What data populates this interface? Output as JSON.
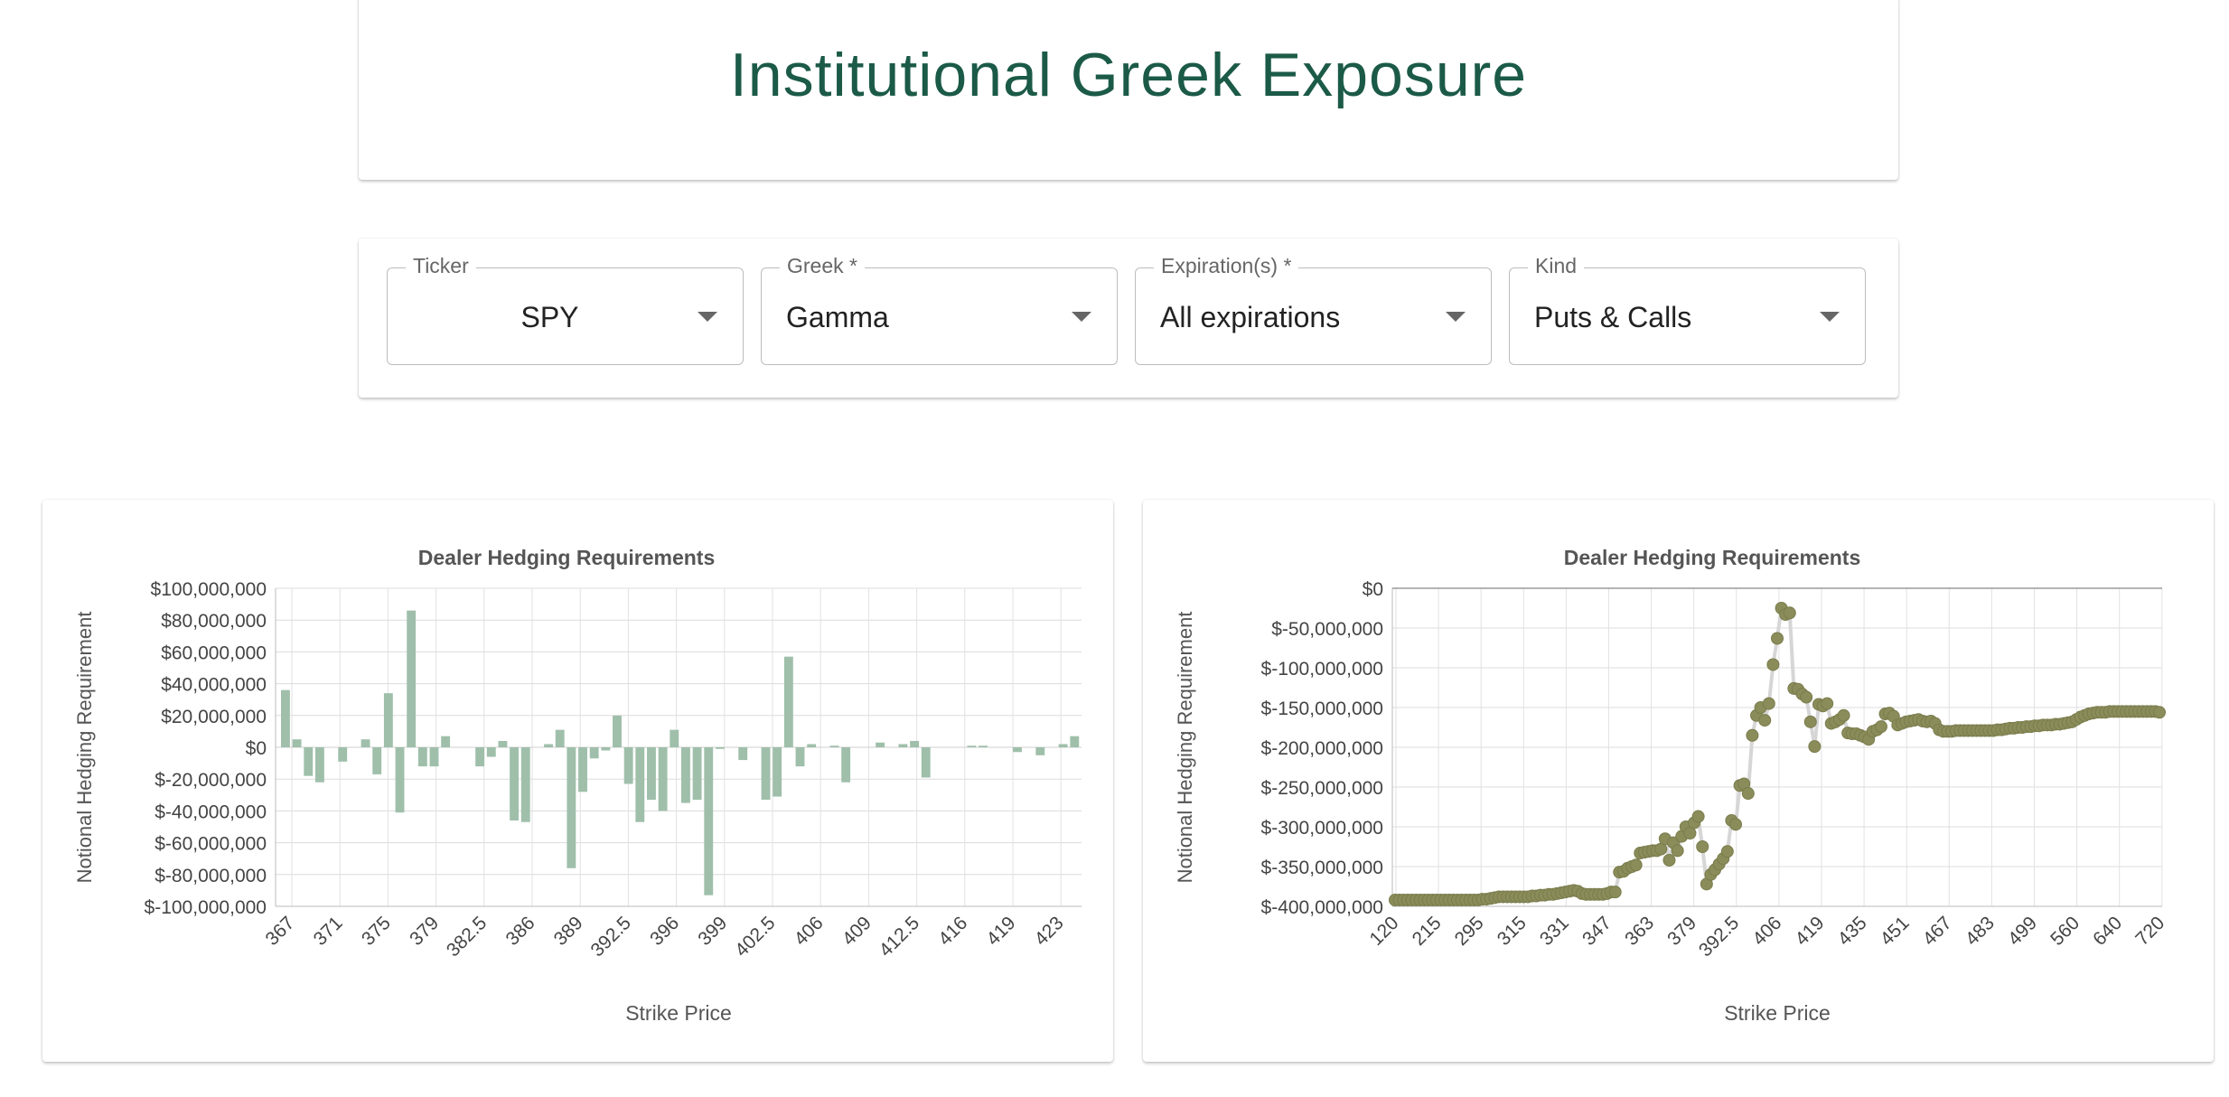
{
  "header": {
    "title": "Institutional Greek Exposure"
  },
  "controls": {
    "fields": [
      {
        "label": "Ticker",
        "value": "SPY"
      },
      {
        "label": "Greek *",
        "value": "Gamma"
      },
      {
        "label": "Expiration(s) *",
        "value": "All expirations"
      },
      {
        "label": "Kind",
        "value": "Puts & Calls"
      }
    ]
  },
  "colors": {
    "title": "#1b5a47",
    "bar": "#9fbfaa",
    "dot": "#8a8c5a",
    "dot_line": "#d6d6d6"
  },
  "chart_data": [
    {
      "type": "bar",
      "title": "Dealer Hedging Requirements",
      "xlabel": "Strike Price",
      "ylabel": "Notional Hedging Requirement",
      "ylim": [
        -100000000,
        100000000
      ],
      "yticks": [
        100000000,
        80000000,
        60000000,
        40000000,
        20000000,
        0,
        -20000000,
        -40000000,
        -60000000,
        -80000000,
        -100000000
      ],
      "ytick_labels": [
        "$100,000,000",
        "$80,000,000",
        "$60,000,000",
        "$40,000,000",
        "$20,000,000",
        "$0",
        "$-20,000,000",
        "$-40,000,000",
        "$-60,000,000",
        "$-80,000,000",
        "$-100,000,000"
      ],
      "xtick_labels": [
        "367",
        "371",
        "375",
        "379",
        "382.5",
        "386",
        "389",
        "392.5",
        "396",
        "399",
        "402.5",
        "406",
        "409",
        "412.5",
        "416",
        "419",
        "423"
      ],
      "grid": true,
      "values": [
        36000000,
        5000000,
        -18000000,
        -22000000,
        0,
        -9000000,
        0,
        5000000,
        -17000000,
        34000000,
        -41000000,
        86000000,
        -12000000,
        -12000000,
        7000000,
        0,
        0,
        -12000000,
        -6000000,
        4000000,
        -46000000,
        -47000000,
        0,
        2000000,
        11000000,
        -76000000,
        -28000000,
        -7000000,
        -2000000,
        20000000,
        -23000000,
        -47000000,
        -33000000,
        -40000000,
        11000000,
        -35000000,
        -33000000,
        -93000000,
        -1000000,
        0,
        -8000000,
        0,
        -33000000,
        -31000000,
        57000000,
        -12000000,
        2000000,
        0,
        1000000,
        -22000000,
        0,
        0,
        3000000,
        0,
        2000000,
        4000000,
        -19000000,
        0,
        0,
        0,
        1000000,
        1000000,
        0,
        0,
        -3000000,
        0,
        -5000000,
        0,
        2000000,
        7000000
      ]
    },
    {
      "type": "scatter",
      "title": "Dealer Hedging Requirements",
      "xlabel": "Strike Price",
      "ylabel": "Notional Hedging Requirement",
      "ylim": [
        -400000000,
        0
      ],
      "yticks": [
        0,
        -50000000,
        -100000000,
        -150000000,
        -200000000,
        -250000000,
        -300000000,
        -350000000,
        -400000000
      ],
      "ytick_labels": [
        "$0",
        "$-50,000,000",
        "$-100,000,000",
        "$-150,000,000",
        "$-200,000,000",
        "$-250,000,000",
        "$-300,000,000",
        "$-350,000,000",
        "$-400,000,000"
      ],
      "xtick_labels": [
        "120",
        "215",
        "295",
        "315",
        "331",
        "347",
        "363",
        "379",
        "392.5",
        "406",
        "419",
        "435",
        "451",
        "467",
        "483",
        "499",
        "560",
        "640",
        "720"
      ],
      "grid": true,
      "values": [
        -392000000,
        -392000000,
        -392000000,
        -392000000,
        -392000000,
        -392000000,
        -392000000,
        -392000000,
        -392000000,
        -392000000,
        -392000000,
        -392000000,
        -392000000,
        -392000000,
        -392000000,
        -392000000,
        -392000000,
        -392000000,
        -392000000,
        -392000000,
        -392000000,
        -391000000,
        -391000000,
        -390000000,
        -389000000,
        -388000000,
        -388000000,
        -388000000,
        -388000000,
        -388000000,
        -388000000,
        -388000000,
        -388000000,
        -387000000,
        -387000000,
        -386000000,
        -386000000,
        -385000000,
        -385000000,
        -384000000,
        -383000000,
        -382000000,
        -381000000,
        -380000000,
        -381000000,
        -384000000,
        -385000000,
        -385000000,
        -385000000,
        -385000000,
        -385000000,
        -384000000,
        -382000000,
        -382000000,
        -357000000,
        -356000000,
        -352000000,
        -350000000,
        -348000000,
        -333000000,
        -332000000,
        -331000000,
        -330000000,
        -330000000,
        -328000000,
        -315000000,
        -342000000,
        -320000000,
        -330000000,
        -312000000,
        -300000000,
        -308000000,
        -295000000,
        -287000000,
        -325000000,
        -372000000,
        -360000000,
        -354000000,
        -347000000,
        -340000000,
        -331000000,
        -292000000,
        -297000000,
        -248000000,
        -246000000,
        -258000000,
        -185000000,
        -160000000,
        -150000000,
        -166000000,
        -145000000,
        -96000000,
        -63000000,
        -25000000,
        -33000000,
        -31000000,
        -126000000,
        -127000000,
        -133000000,
        -137000000,
        -168000000,
        -199000000,
        -146000000,
        -148000000,
        -145000000,
        -170000000,
        -168000000,
        -165000000,
        -160000000,
        -182000000,
        -183000000,
        -183000000,
        -185000000,
        -187000000,
        -190000000,
        -180000000,
        -178000000,
        -174000000,
        -158000000,
        -157000000,
        -161000000,
        -172000000,
        -170000000,
        -168000000,
        -167000000,
        -166000000,
        -165000000,
        -167000000,
        -168000000,
        -167000000,
        -170000000,
        -178000000,
        -180000000,
        -180000000,
        -180000000,
        -179000000,
        -179000000,
        -179000000,
        -179000000,
        -179000000,
        -179000000,
        -179000000,
        -179000000,
        -179000000,
        -179000000,
        -178000000,
        -178000000,
        -177000000,
        -176000000,
        -176000000,
        -175000000,
        -175000000,
        -174000000,
        -174000000,
        -173000000,
        -173000000,
        -172000000,
        -172000000,
        -172000000,
        -171000000,
        -171000000,
        -170000000,
        -169000000,
        -168000000,
        -165000000,
        -162000000,
        -160000000,
        -158000000,
        -157000000,
        -156000000,
        -156000000,
        -156000000,
        -155000000,
        -155000000,
        -155000000,
        -155000000,
        -155000000,
        -155000000,
        -155000000,
        -155000000,
        -155000000,
        -155000000,
        -155000000,
        -155000000,
        -156000000
      ]
    }
  ]
}
